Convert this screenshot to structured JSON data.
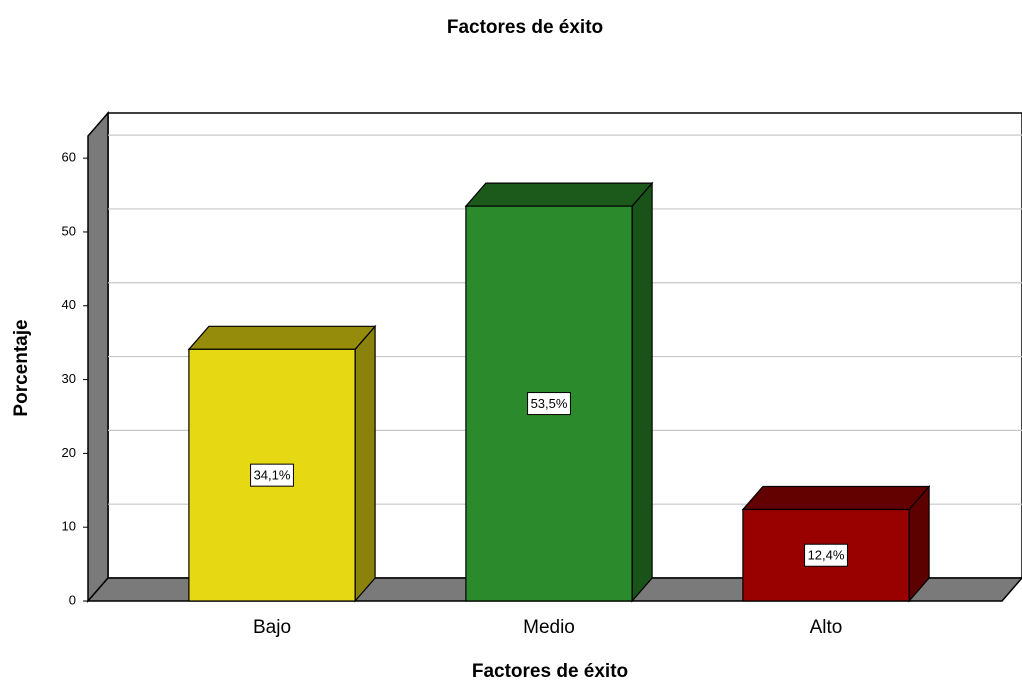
{
  "chart_data": {
    "type": "bar3d",
    "title": "Factores de éxito",
    "x_label": "Factores de éxito",
    "y_label": "Porcentaje",
    "categories": [
      "Bajo",
      "Medio",
      "Alto"
    ],
    "values": [
      34.1,
      53.5,
      12.4
    ],
    "value_labels": [
      "34,1%",
      "53,5%",
      "12,4%"
    ],
    "colors": [
      "#e6d813",
      "#2b8a2b",
      "#990000"
    ],
    "ylim": [
      0,
      63
    ],
    "yticks": [
      0,
      10,
      20,
      30,
      40,
      50,
      60
    ],
    "grid": true
  }
}
